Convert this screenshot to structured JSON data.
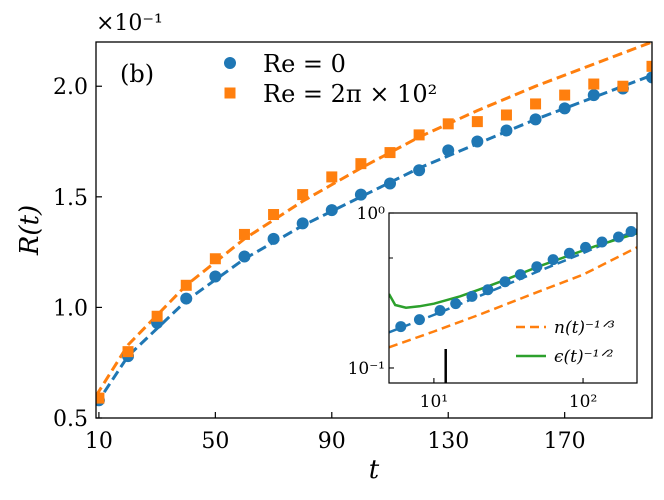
{
  "chart_data": [
    {
      "type": "scatter",
      "panel_label": "(b)",
      "xlabel": "t",
      "ylabel": "R(t)",
      "y_multiplier": "×10⁻¹",
      "xlim": [
        9,
        200
      ],
      "ylim": [
        0.5,
        2.2
      ],
      "xticks": [
        10,
        50,
        90,
        130,
        170
      ],
      "yticks": [
        0.5,
        1.0,
        1.5,
        2.0
      ],
      "ytick_labels": [
        "0.5",
        "1.0",
        "1.5",
        "2.0"
      ],
      "legend_position": "top-left",
      "series": [
        {
          "name": "Re = 0",
          "marker": "circle",
          "color": "#1f77b4",
          "x": [
            10,
            20,
            30,
            40,
            50,
            60,
            70,
            80,
            90,
            100,
            110,
            120,
            130,
            140,
            150,
            160,
            170,
            180,
            190,
            200
          ],
          "y": [
            0.58,
            0.78,
            0.93,
            1.04,
            1.14,
            1.23,
            1.31,
            1.38,
            1.44,
            1.51,
            1.56,
            1.62,
            1.71,
            1.75,
            1.8,
            1.85,
            1.9,
            1.96,
            1.99,
            2.04
          ]
        },
        {
          "name": "Re = 2π × 10²",
          "marker": "square",
          "color": "#ff7f0e",
          "x": [
            10,
            20,
            30,
            40,
            50,
            60,
            70,
            80,
            90,
            100,
            110,
            120,
            130,
            140,
            150,
            160,
            170,
            180,
            190,
            200
          ],
          "y": [
            0.59,
            0.8,
            0.96,
            1.1,
            1.22,
            1.33,
            1.42,
            1.51,
            1.59,
            1.65,
            1.7,
            1.78,
            1.83,
            1.84,
            1.87,
            1.92,
            1.96,
            2.01,
            2.0,
            2.09
          ]
        },
        {
          "name": "fit Re = 0",
          "style": "dashed-line",
          "color": "#1f77b4",
          "x": [
            9,
            20,
            40,
            60,
            80,
            100,
            120,
            140,
            160,
            180,
            200
          ],
          "y": [
            0.56,
            0.78,
            1.03,
            1.22,
            1.37,
            1.5,
            1.63,
            1.74,
            1.85,
            1.95,
            2.05
          ]
        },
        {
          "name": "fit Re = 2π × 10²",
          "style": "dashed-line",
          "color": "#ff7f0e",
          "x": [
            9,
            20,
            40,
            60,
            80,
            100,
            120,
            140,
            160,
            180,
            200
          ],
          "y": [
            0.6,
            0.83,
            1.1,
            1.31,
            1.48,
            1.63,
            1.77,
            1.89,
            2.0,
            2.1,
            2.2
          ]
        }
      ]
    },
    {
      "type": "line",
      "role": "inset",
      "x_scale": "log",
      "y_scale": "log",
      "xlim": [
        5,
        230
      ],
      "ylim": [
        0.08,
        1.0
      ],
      "xticks": [
        10,
        100
      ],
      "xtick_labels": [
        "10¹",
        "10²"
      ],
      "yticks": [
        0.1,
        1.0
      ],
      "ytick_labels": [
        "10⁻¹",
        "10⁰"
      ],
      "marker_line_x": 12,
      "legend_position": "bottom-right",
      "series": [
        {
          "name": "",
          "marker": "circle",
          "color": "#1f77b4",
          "x": [
            6,
            8,
            11,
            14,
            18,
            23,
            30,
            38,
            49,
            63,
            81,
            104,
            134,
            173,
            210
          ],
          "y": [
            0.185,
            0.205,
            0.235,
            0.26,
            0.29,
            0.32,
            0.36,
            0.4,
            0.45,
            0.5,
            0.55,
            0.6,
            0.65,
            0.7,
            0.76
          ]
        },
        {
          "name": "",
          "style": "dashed-line",
          "color": "#1f77b4",
          "x": [
            5,
            10,
            20,
            50,
            100,
            230
          ],
          "y": [
            0.17,
            0.22,
            0.29,
            0.42,
            0.55,
            0.78
          ]
        },
        {
          "name": "n(t)⁻¹ᐟ³",
          "style": "dashed-line",
          "color": "#ff7f0e",
          "x": [
            5,
            10,
            20,
            50,
            100,
            230
          ],
          "y": [
            0.136,
            0.172,
            0.22,
            0.31,
            0.4,
            0.6
          ]
        },
        {
          "name": "ϵ(t)⁻¹ᐟ²",
          "style": "solid-line",
          "color": "#2ca02c",
          "x": [
            5,
            5.5,
            6.5,
            8,
            10,
            15,
            20,
            30,
            50,
            80,
            120,
            230
          ],
          "y": [
            0.3,
            0.255,
            0.245,
            0.25,
            0.26,
            0.29,
            0.32,
            0.37,
            0.45,
            0.53,
            0.61,
            0.74
          ]
        }
      ]
    }
  ]
}
